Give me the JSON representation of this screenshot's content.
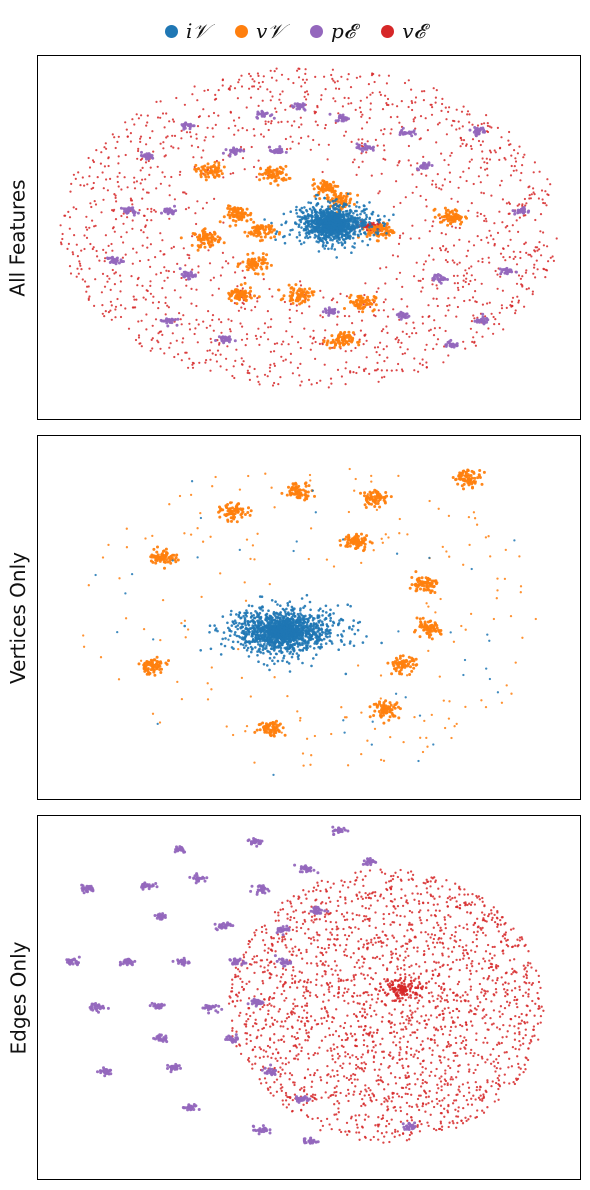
{
  "legend": [
    {
      "label": "i𝒱",
      "color": "#1f77b4"
    },
    {
      "label": "v𝒱",
      "color": "#ff7f0e"
    },
    {
      "label": "p𝓔",
      "color": "#9467bd"
    },
    {
      "label": "v𝓔",
      "color": "#d62728"
    }
  ],
  "chart_data": [
    {
      "type": "scatter",
      "ylabel": "All Features",
      "xlim": [
        -1,
        1
      ],
      "ylim": [
        -1,
        1
      ],
      "grid": false,
      "legend_placement": "top-center",
      "series": [
        {
          "name": "v𝓔",
          "color": "#d62728",
          "kind": "ring",
          "center": [
            0,
            0.06
          ],
          "radius": [
            0.92,
            0.88
          ],
          "count": 1500
        },
        {
          "name": "v𝓔",
          "color": "#d62728",
          "kind": "blob",
          "center": [
            0.22,
            0.07
          ],
          "radius": [
            0.06,
            0.03
          ],
          "count": 60
        },
        {
          "name": "v𝒱",
          "color": "#ff7f0e",
          "kind": "clusters",
          "points": [
            [
              -0.37,
              0.37
            ],
            [
              -0.13,
              0.35
            ],
            [
              0.11,
              0.21
            ],
            [
              -0.26,
              0.13
            ],
            [
              -0.38,
              0.0
            ],
            [
              -0.18,
              0.04
            ],
            [
              -0.2,
              -0.14
            ],
            [
              -0.26,
              -0.31
            ],
            [
              -0.04,
              -0.31
            ],
            [
              0.19,
              -0.35
            ],
            [
              0.11,
              -0.56
            ],
            [
              0.52,
              0.12
            ],
            [
              0.26,
              0.04
            ],
            [
              0.06,
              0.28
            ]
          ]
        },
        {
          "name": "p𝓔",
          "color": "#9467bd",
          "kind": "clusters",
          "points": [
            [
              -0.17,
              0.68
            ],
            [
              0.12,
              0.66
            ],
            [
              -0.45,
              0.62
            ],
            [
              0.35,
              0.58
            ],
            [
              0.62,
              0.59
            ],
            [
              -0.6,
              0.45
            ],
            [
              0.42,
              0.4
            ],
            [
              -0.28,
              0.48
            ],
            [
              -0.66,
              0.15
            ],
            [
              -0.52,
              0.15
            ],
            [
              0.78,
              0.15
            ],
            [
              -0.72,
              -0.12
            ],
            [
              -0.45,
              -0.2
            ],
            [
              0.48,
              -0.22
            ],
            [
              0.72,
              -0.18
            ],
            [
              -0.52,
              -0.45
            ],
            [
              -0.32,
              -0.55
            ],
            [
              0.34,
              -0.42
            ],
            [
              0.08,
              -0.4
            ],
            [
              0.63,
              -0.45
            ],
            [
              -0.04,
              0.72
            ],
            [
              -0.12,
              0.48
            ],
            [
              0.2,
              0.5
            ],
            [
              0.52,
              -0.58
            ]
          ]
        },
        {
          "name": "i𝒱",
          "color": "#1f77b4",
          "kind": "blob",
          "center": [
            0.08,
            0.08
          ],
          "radius": [
            0.13,
            0.1
          ],
          "count": 1400
        }
      ]
    },
    {
      "type": "scatter",
      "ylabel": "Vertices Only",
      "xlim": [
        -1,
        1
      ],
      "ylim": [
        -1,
        1
      ],
      "grid": false,
      "series": [
        {
          "name": "v𝒱",
          "color": "#ff7f0e",
          "kind": "sparse",
          "center": [
            0,
            0
          ],
          "radius": [
            0.85,
            0.85
          ],
          "count": 180
        },
        {
          "name": "v𝒱",
          "color": "#ff7f0e",
          "kind": "clusters",
          "points": [
            [
              -0.28,
              0.58
            ],
            [
              -0.04,
              0.7
            ],
            [
              0.24,
              0.66
            ],
            [
              0.58,
              0.77
            ],
            [
              -0.54,
              0.34
            ],
            [
              0.17,
              0.42
            ],
            [
              0.42,
              0.19
            ],
            [
              -0.58,
              -0.26
            ],
            [
              0.43,
              -0.06
            ],
            [
              0.34,
              -0.25
            ],
            [
              0.28,
              -0.5
            ],
            [
              -0.14,
              -0.6
            ]
          ]
        },
        {
          "name": "i𝒱",
          "color": "#1f77b4",
          "kind": "sparse",
          "center": [
            0,
            0
          ],
          "radius": [
            0.88,
            0.88
          ],
          "count": 40
        },
        {
          "name": "i𝒱",
          "color": "#1f77b4",
          "kind": "blob",
          "center": [
            -0.1,
            -0.07
          ],
          "radius": [
            0.19,
            0.12
          ],
          "count": 1800
        }
      ]
    },
    {
      "type": "scatter",
      "ylabel": "Edges Only",
      "xlim": [
        -1,
        1
      ],
      "ylim": [
        -1,
        1
      ],
      "grid": false,
      "series": [
        {
          "name": "v𝓔",
          "color": "#d62728",
          "kind": "disk",
          "center": [
            0.28,
            -0.04
          ],
          "radius": [
            0.58,
            0.75
          ],
          "count": 2200
        },
        {
          "name": "v𝓔",
          "color": "#d62728",
          "kind": "blob",
          "center": [
            0.34,
            0.05
          ],
          "radius": [
            0.08,
            0.06
          ],
          "count": 120
        },
        {
          "name": "p𝓔",
          "color": "#9467bd",
          "kind": "clusters",
          "points": [
            [
              -0.48,
              0.82
            ],
            [
              -0.2,
              0.86
            ],
            [
              0.11,
              0.92
            ],
            [
              -0.01,
              0.71
            ],
            [
              0.22,
              0.75
            ],
            [
              -0.6,
              0.62
            ],
            [
              -0.41,
              0.66
            ],
            [
              -0.82,
              0.6
            ],
            [
              -0.55,
              0.45
            ],
            [
              -0.32,
              0.4
            ],
            [
              -0.18,
              0.6
            ],
            [
              -0.87,
              0.2
            ],
            [
              -0.67,
              0.2
            ],
            [
              -0.47,
              0.2
            ],
            [
              -0.27,
              0.2
            ],
            [
              -0.1,
              0.2
            ],
            [
              -0.78,
              -0.05
            ],
            [
              -0.56,
              -0.04
            ],
            [
              -0.37,
              -0.05
            ],
            [
              -0.2,
              -0.02
            ],
            [
              -0.75,
              -0.4
            ],
            [
              -0.5,
              -0.38
            ],
            [
              -0.15,
              -0.4
            ],
            [
              -0.44,
              -0.6
            ],
            [
              -0.18,
              -0.72
            ],
            [
              0.0,
              -0.78
            ],
            [
              -0.55,
              -0.22
            ],
            [
              -0.28,
              -0.22
            ],
            [
              -0.1,
              0.38
            ],
            [
              0.03,
              0.48
            ],
            [
              0.37,
              -0.7
            ],
            [
              -0.03,
              -0.55
            ]
          ]
        }
      ]
    }
  ]
}
